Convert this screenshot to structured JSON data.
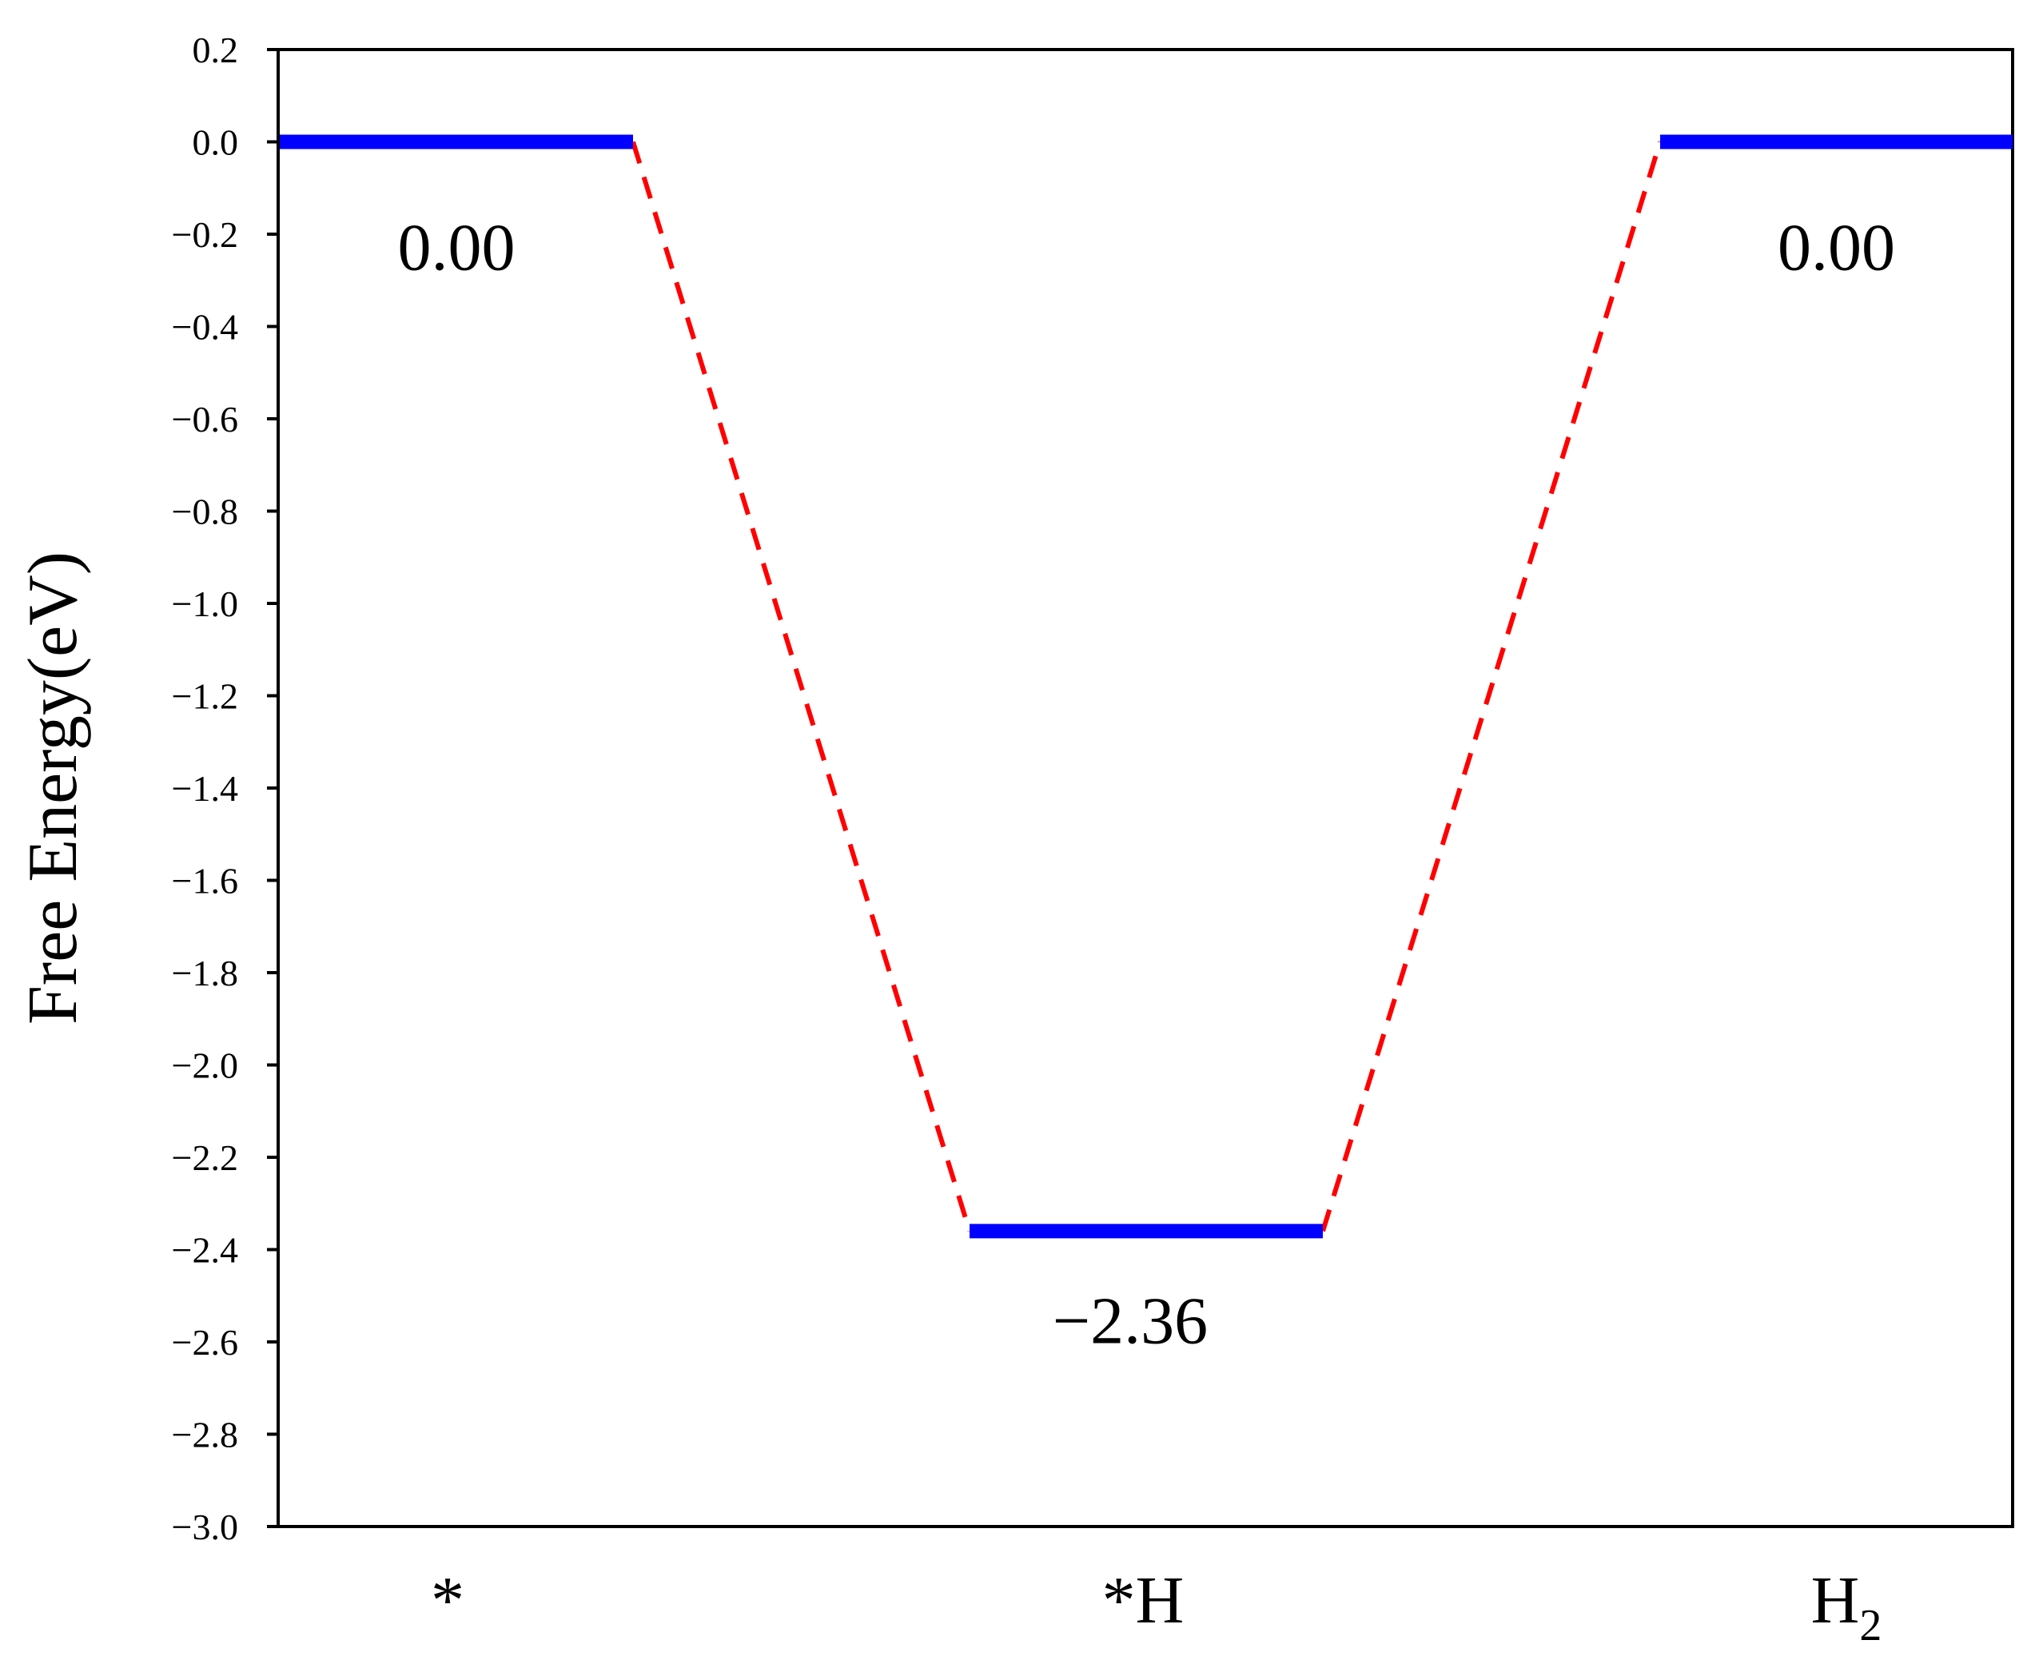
{
  "chart_data": {
    "type": "line",
    "ylabel": "Free Energy(eV)",
    "xlabel": "",
    "title": "",
    "ylim": [
      -3.0,
      0.2
    ],
    "yticks": [
      0.2,
      0.0,
      -0.2,
      -0.4,
      -0.6,
      -0.8,
      -1.0,
      -1.2,
      -1.4,
      -1.6,
      -1.8,
      -2.0,
      -2.2,
      -2.4,
      -2.6,
      -2.8,
      -3.0
    ],
    "ytick_labels": [
      "0.2",
      "0.0",
      "−0.2",
      "−0.4",
      "−0.6",
      "−0.8",
      "−1.0",
      "−1.2",
      "−1.4",
      "−1.6",
      "−1.8",
      "−2.0",
      "−2.2",
      "−2.4",
      "−2.6",
      "−2.8",
      "−3.0"
    ],
    "grid": false,
    "states": [
      {
        "label": "*",
        "sub": "",
        "value": 0.0,
        "value_label": "0.00"
      },
      {
        "label": "*H",
        "sub": "",
        "value": -2.36,
        "value_label": "−2.36"
      },
      {
        "label": "H",
        "sub": "2",
        "value": 0.0,
        "value_label": "0.00"
      }
    ],
    "level_color": "#0000ff",
    "connector_color": "#ff0000"
  }
}
